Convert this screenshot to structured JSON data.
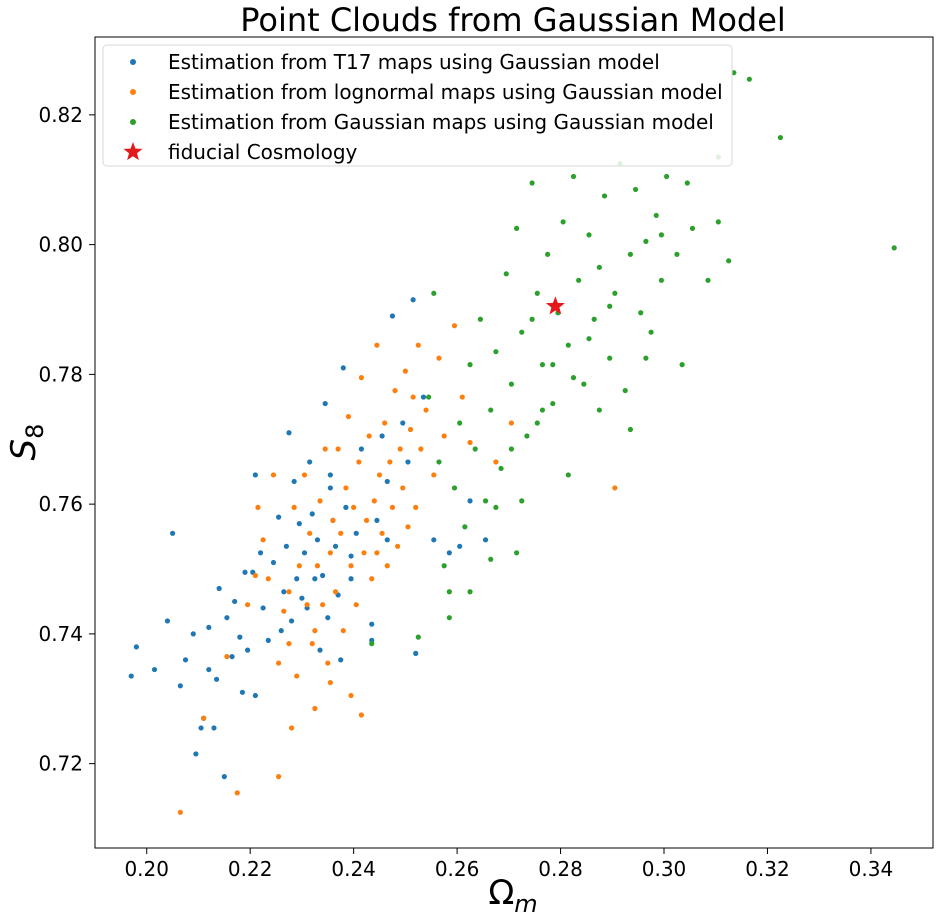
{
  "chart_data": {
    "type": "scatter",
    "title": "Point Clouds from Gaussian Model",
    "xlabel": "Ω",
    "xlabel_sub": "m",
    "ylabel": "S",
    "ylabel_sub": "8",
    "xlim": [
      0.19,
      0.352
    ],
    "ylim": [
      0.707,
      0.832
    ],
    "xticks": [
      0.2,
      0.22,
      0.24,
      0.26,
      0.28,
      0.3,
      0.32,
      0.34
    ],
    "yticks": [
      0.72,
      0.74,
      0.76,
      0.78,
      0.8,
      0.82
    ],
    "xtick_labels": [
      "0.20",
      "0.22",
      "0.24",
      "0.26",
      "0.28",
      "0.30",
      "0.32",
      "0.34"
    ],
    "ytick_labels": [
      "0.72",
      "0.74",
      "0.76",
      "0.78",
      "0.80",
      "0.82"
    ],
    "grid": false,
    "legend_position": "top-left",
    "series": [
      {
        "name": "Estimation from T17 maps using Gaussian model",
        "color": "#1f77b4",
        "marker": "dot",
        "points": [
          [
            0.197,
            0.7335
          ],
          [
            0.198,
            0.738
          ],
          [
            0.2015,
            0.7345
          ],
          [
            0.204,
            0.742
          ],
          [
            0.205,
            0.7555
          ],
          [
            0.2065,
            0.732
          ],
          [
            0.2075,
            0.736
          ],
          [
            0.209,
            0.74
          ],
          [
            0.2095,
            0.7215
          ],
          [
            0.2105,
            0.7255
          ],
          [
            0.211,
            0.727
          ],
          [
            0.212,
            0.741
          ],
          [
            0.212,
            0.7345
          ],
          [
            0.213,
            0.7255
          ],
          [
            0.2135,
            0.733
          ],
          [
            0.214,
            0.747
          ],
          [
            0.215,
            0.718
          ],
          [
            0.2155,
            0.7425
          ],
          [
            0.2165,
            0.7365
          ],
          [
            0.217,
            0.745
          ],
          [
            0.218,
            0.7395
          ],
          [
            0.2185,
            0.731
          ],
          [
            0.219,
            0.7495
          ],
          [
            0.2195,
            0.7375
          ],
          [
            0.2205,
            0.7495
          ],
          [
            0.221,
            0.7305
          ],
          [
            0.221,
            0.7645
          ],
          [
            0.222,
            0.7525
          ],
          [
            0.2225,
            0.744
          ],
          [
            0.2235,
            0.739
          ],
          [
            0.2245,
            0.751
          ],
          [
            0.2255,
            0.758
          ],
          [
            0.226,
            0.7405
          ],
          [
            0.2265,
            0.7465
          ],
          [
            0.227,
            0.7535
          ],
          [
            0.2275,
            0.771
          ],
          [
            0.228,
            0.742
          ],
          [
            0.2285,
            0.7635
          ],
          [
            0.229,
            0.7485
          ],
          [
            0.2295,
            0.757
          ],
          [
            0.23,
            0.7455
          ],
          [
            0.2305,
            0.7525
          ],
          [
            0.231,
            0.744
          ],
          [
            0.2315,
            0.7665
          ],
          [
            0.232,
            0.7585
          ],
          [
            0.2325,
            0.7485
          ],
          [
            0.233,
            0.7545
          ],
          [
            0.2335,
            0.7375
          ],
          [
            0.234,
            0.749
          ],
          [
            0.2345,
            0.7755
          ],
          [
            0.235,
            0.7425
          ],
          [
            0.2355,
            0.7645
          ],
          [
            0.236,
            0.7575
          ],
          [
            0.2365,
            0.7535
          ],
          [
            0.237,
            0.746
          ],
          [
            0.2375,
            0.736
          ],
          [
            0.238,
            0.781
          ],
          [
            0.2385,
            0.7595
          ],
          [
            0.2395,
            0.752
          ],
          [
            0.2405,
            0.7555
          ],
          [
            0.2415,
            0.7685
          ],
          [
            0.2435,
            0.7415
          ],
          [
            0.2445,
            0.7575
          ],
          [
            0.2455,
            0.7705
          ],
          [
            0.2465,
            0.7635
          ],
          [
            0.2475,
            0.789
          ],
          [
            0.2495,
            0.7725
          ],
          [
            0.2505,
            0.7665
          ],
          [
            0.2515,
            0.7915
          ],
          [
            0.2535,
            0.7765
          ],
          [
            0.2555,
            0.7545
          ],
          [
            0.2585,
            0.7525
          ],
          [
            0.2605,
            0.7535
          ],
          [
            0.2625,
            0.7605
          ],
          [
            0.2655,
            0.7545
          ],
          [
            0.252,
            0.737
          ],
          [
            0.2435,
            0.739
          ],
          [
            0.2465,
            0.7545
          ],
          [
            0.2395,
            0.7485
          ],
          [
            0.2355,
            0.7625
          ]
        ]
      },
      {
        "name": "Estimation from lognormal maps using Gaussian model",
        "color": "#ff7f0e",
        "marker": "dot",
        "points": [
          [
            0.2065,
            0.7125
          ],
          [
            0.211,
            0.727
          ],
          [
            0.2155,
            0.7365
          ],
          [
            0.2175,
            0.7155
          ],
          [
            0.2195,
            0.7445
          ],
          [
            0.221,
            0.749
          ],
          [
            0.2215,
            0.7595
          ],
          [
            0.2225,
            0.7545
          ],
          [
            0.2235,
            0.7485
          ],
          [
            0.2245,
            0.7645
          ],
          [
            0.2255,
            0.7355
          ],
          [
            0.2255,
            0.718
          ],
          [
            0.2265,
            0.7435
          ],
          [
            0.2275,
            0.7385
          ],
          [
            0.228,
            0.7255
          ],
          [
            0.2285,
            0.7595
          ],
          [
            0.229,
            0.7335
          ],
          [
            0.2295,
            0.7505
          ],
          [
            0.2305,
            0.7645
          ],
          [
            0.231,
            0.7445
          ],
          [
            0.2315,
            0.7555
          ],
          [
            0.232,
            0.7385
          ],
          [
            0.2325,
            0.7285
          ],
          [
            0.233,
            0.7505
          ],
          [
            0.2335,
            0.7605
          ],
          [
            0.234,
            0.7445
          ],
          [
            0.2345,
            0.7685
          ],
          [
            0.235,
            0.7355
          ],
          [
            0.2355,
            0.7525
          ],
          [
            0.236,
            0.7575
          ],
          [
            0.2365,
            0.7465
          ],
          [
            0.237,
            0.7685
          ],
          [
            0.2375,
            0.7555
          ],
          [
            0.238,
            0.7405
          ],
          [
            0.2385,
            0.7625
          ],
          [
            0.239,
            0.7735
          ],
          [
            0.2395,
            0.7505
          ],
          [
            0.24,
            0.7595
          ],
          [
            0.2405,
            0.7445
          ],
          [
            0.241,
            0.7665
          ],
          [
            0.2415,
            0.7795
          ],
          [
            0.242,
            0.7525
          ],
          [
            0.2425,
            0.7575
          ],
          [
            0.243,
            0.7705
          ],
          [
            0.2435,
            0.7485
          ],
          [
            0.244,
            0.7605
          ],
          [
            0.2445,
            0.7845
          ],
          [
            0.245,
            0.7645
          ],
          [
            0.2455,
            0.7555
          ],
          [
            0.246,
            0.7725
          ],
          [
            0.2465,
            0.7505
          ],
          [
            0.247,
            0.7665
          ],
          [
            0.2475,
            0.7595
          ],
          [
            0.248,
            0.7775
          ],
          [
            0.2485,
            0.7535
          ],
          [
            0.249,
            0.7685
          ],
          [
            0.2495,
            0.7625
          ],
          [
            0.25,
            0.7805
          ],
          [
            0.2505,
            0.7565
          ],
          [
            0.251,
            0.7715
          ],
          [
            0.2515,
            0.7765
          ],
          [
            0.252,
            0.7595
          ],
          [
            0.2525,
            0.7845
          ],
          [
            0.253,
            0.7685
          ],
          [
            0.254,
            0.7745
          ],
          [
            0.2555,
            0.7645
          ],
          [
            0.2565,
            0.7825
          ],
          [
            0.2575,
            0.7705
          ],
          [
            0.2595,
            0.7875
          ],
          [
            0.261,
            0.7765
          ],
          [
            0.2625,
            0.7695
          ],
          [
            0.2415,
            0.7275
          ],
          [
            0.2395,
            0.7305
          ],
          [
            0.2325,
            0.7405
          ],
          [
            0.2275,
            0.7465
          ],
          [
            0.2905,
            0.7625
          ],
          [
            0.2705,
            0.7725
          ],
          [
            0.2675,
            0.7665
          ],
          [
            0.2445,
            0.7525
          ],
          [
            0.2355,
            0.7325
          ]
        ]
      },
      {
        "name": "Estimation from Gaussian maps using Gaussian model",
        "color": "#2ca02c",
        "marker": "dot",
        "points": [
          [
            0.2435,
            0.7385
          ],
          [
            0.2525,
            0.7395
          ],
          [
            0.2545,
            0.7765
          ],
          [
            0.2555,
            0.7925
          ],
          [
            0.2565,
            0.7665
          ],
          [
            0.2575,
            0.7505
          ],
          [
            0.2585,
            0.7465
          ],
          [
            0.2595,
            0.7625
          ],
          [
            0.2605,
            0.7725
          ],
          [
            0.2615,
            0.7565
          ],
          [
            0.2625,
            0.7815
          ],
          [
            0.2635,
            0.7685
          ],
          [
            0.2645,
            0.7885
          ],
          [
            0.2655,
            0.7605
          ],
          [
            0.2665,
            0.7745
          ],
          [
            0.2675,
            0.7835
          ],
          [
            0.2685,
            0.7655
          ],
          [
            0.2695,
            0.7955
          ],
          [
            0.2705,
            0.7785
          ],
          [
            0.2715,
            0.8025
          ],
          [
            0.2715,
            0.7525
          ],
          [
            0.2725,
            0.7865
          ],
          [
            0.2735,
            0.7705
          ],
          [
            0.2745,
            0.8095
          ],
          [
            0.2755,
            0.7925
          ],
          [
            0.2765,
            0.7815
          ],
          [
            0.2775,
            0.7985
          ],
          [
            0.2785,
            0.7755
          ],
          [
            0.2795,
            0.7895
          ],
          [
            0.2805,
            0.8035
          ],
          [
            0.2815,
            0.7845
          ],
          [
            0.2825,
            0.8105
          ],
          [
            0.2835,
            0.7945
          ],
          [
            0.2845,
            0.7785
          ],
          [
            0.2855,
            0.8015
          ],
          [
            0.2865,
            0.7885
          ],
          [
            0.2875,
            0.7965
          ],
          [
            0.2885,
            0.8075
          ],
          [
            0.2895,
            0.7825
          ],
          [
            0.2905,
            0.7925
          ],
          [
            0.2915,
            0.8125
          ],
          [
            0.2925,
            0.7775
          ],
          [
            0.2935,
            0.7985
          ],
          [
            0.2945,
            0.8085
          ],
          [
            0.2955,
            0.7895
          ],
          [
            0.2965,
            0.8005
          ],
          [
            0.2975,
            0.7865
          ],
          [
            0.2985,
            0.8045
          ],
          [
            0.2995,
            0.7945
          ],
          [
            0.3005,
            0.8105
          ],
          [
            0.3025,
            0.7985
          ],
          [
            0.3055,
            0.8025
          ],
          [
            0.3085,
            0.7945
          ],
          [
            0.3105,
            0.8135
          ],
          [
            0.3105,
            0.8035
          ],
          [
            0.3125,
            0.7975
          ],
          [
            0.3135,
            0.8265
          ],
          [
            0.3165,
            0.8255
          ],
          [
            0.3225,
            0.8165
          ],
          [
            0.3445,
            0.7995
          ],
          [
            0.2755,
            0.7725
          ],
          [
            0.2725,
            0.7605
          ],
          [
            0.2665,
            0.7515
          ],
          [
            0.2625,
            0.7465
          ],
          [
            0.2585,
            0.7425
          ],
          [
            0.2815,
            0.7645
          ],
          [
            0.2935,
            0.7715
          ],
          [
            0.2965,
            0.7825
          ],
          [
            0.3045,
            0.8095
          ],
          [
            0.2875,
            0.7745
          ],
          [
            0.3035,
            0.7815
          ],
          [
            0.2995,
            0.8015
          ],
          [
            0.2675,
            0.7595
          ],
          [
            0.2705,
            0.7685
          ],
          [
            0.2765,
            0.7745
          ],
          [
            0.2785,
            0.7815
          ],
          [
            0.2745,
            0.7885
          ],
          [
            0.2825,
            0.7795
          ],
          [
            0.2855,
            0.7855
          ],
          [
            0.2895,
            0.7905
          ]
        ]
      },
      {
        "name": "fiducial Cosmology",
        "color": "#e31a1c",
        "marker": "star",
        "points": [
          [
            0.279,
            0.7905
          ]
        ]
      }
    ]
  }
}
